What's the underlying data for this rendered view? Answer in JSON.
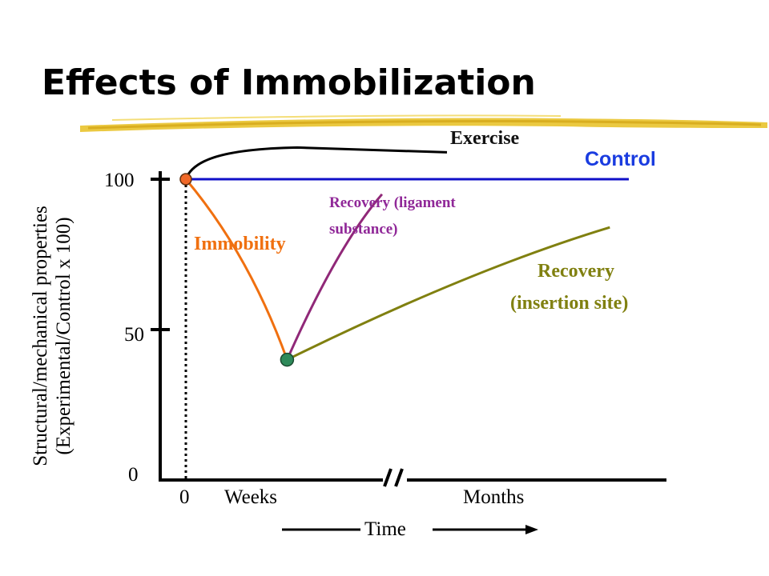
{
  "slide": {
    "title": "Effects of Immobilization"
  },
  "colors": {
    "exercise": "#000000",
    "control": "#1010c8",
    "immobility": "#f07010",
    "recovery_ligament": "#902878",
    "recovery_insertion": "#808010",
    "title_underline": "#e8c020"
  },
  "chart_data": {
    "type": "line",
    "title": "Effects of Immobilization",
    "ylabel_line1": "Structural/mechanical  properties",
    "ylabel_line2": "(Experimental/Control  x 100)",
    "xlabel": "Time",
    "x_ticks": {
      "zero": "0",
      "weeks": "Weeks",
      "months": "Months"
    },
    "y_ticks": [
      "0",
      "50",
      "100"
    ],
    "ylim": [
      0,
      100
    ],
    "axis_break": "//",
    "series": [
      {
        "name": "Exercise",
        "key": "exercise",
        "points": [
          [
            0,
            100
          ],
          [
            1,
            110
          ],
          [
            4,
            110
          ]
        ]
      },
      {
        "name": "Control",
        "key": "control",
        "points": [
          [
            0,
            100
          ],
          [
            7,
            100
          ]
        ]
      },
      {
        "name": "Immobility",
        "key": "immobility",
        "points": [
          [
            0,
            100
          ],
          [
            1,
            75
          ],
          [
            1.6,
            40
          ]
        ]
      },
      {
        "name": "Recovery (ligament substance)",
        "key": "recovery_ligament",
        "points": [
          [
            1.6,
            40
          ],
          [
            2.4,
            78
          ],
          [
            3.1,
            95
          ]
        ]
      },
      {
        "name": "Recovery (insertion site)",
        "key": "recovery_insertion",
        "points": [
          [
            1.6,
            40
          ],
          [
            4.5,
            70
          ],
          [
            6.7,
            84
          ]
        ]
      }
    ],
    "labels": {
      "exercise": "Exercise",
      "control": "Control",
      "immobility": "Immobility",
      "recovery_ligament_1": "Recovery (ligament",
      "recovery_ligament_2": "substance)",
      "recovery_insertion_1": "Recovery",
      "recovery_insertion_2": "(insertion site)"
    }
  }
}
